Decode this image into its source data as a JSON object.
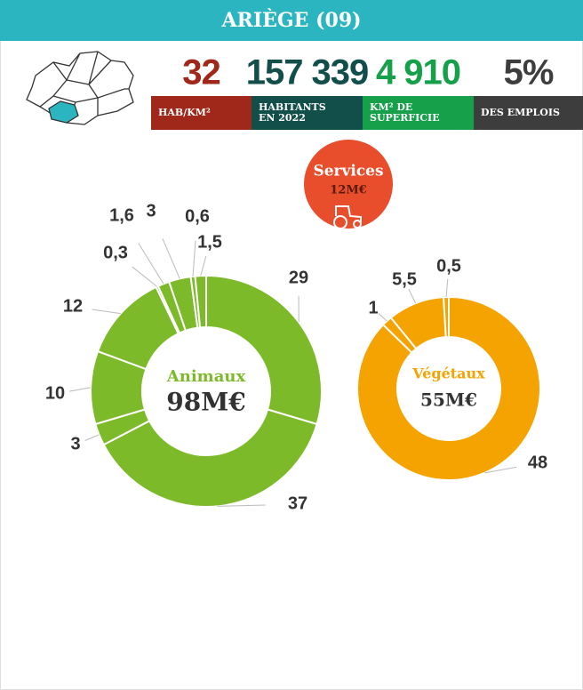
{
  "header": {
    "title": "ARIÈGE (09)"
  },
  "stats": [
    {
      "value": "32",
      "label": [
        "HAB/KM²"
      ],
      "color": "#a0281a"
    },
    {
      "value": "157 339",
      "label": [
        "HABITANTS",
        "EN 2022"
      ],
      "color": "#124f4a"
    },
    {
      "value": "4 910",
      "label": [
        "KM² DE",
        "SUPERFICIE"
      ],
      "color": "#16a04a"
    },
    {
      "value": "5%",
      "label": [
        "DES EMPLOIS"
      ],
      "color": "#3d3d3d"
    }
  ],
  "services": {
    "title": "Services",
    "value_label": "12M€",
    "color": "#e84e2c"
  },
  "chart_data": [
    {
      "type": "donut",
      "title": "Animaux",
      "total_label": "98M€",
      "color": "#7dba2a",
      "values": [
        29,
        37,
        3,
        10,
        12,
        0.3,
        1.6,
        3,
        0.6,
        1.5
      ],
      "value_labels": [
        "29",
        "37",
        "3",
        "10",
        "12",
        "0,3",
        "1,6",
        "3",
        "0,6",
        "1,5"
      ]
    },
    {
      "type": "donut",
      "title": "Végétaux",
      "total_label": "55M€",
      "color": "#f5a300",
      "values": [
        48,
        1,
        5.5,
        0.5
      ],
      "value_labels": [
        "48",
        "1",
        "5,5",
        "0,5"
      ]
    }
  ]
}
